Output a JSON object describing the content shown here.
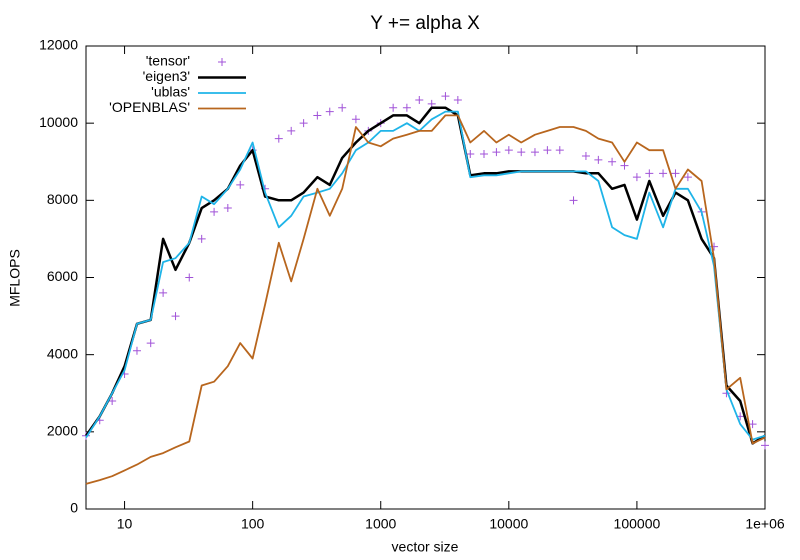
{
  "chart_data": {
    "type": "line",
    "title": "Y += alpha X",
    "xlabel": "vector size",
    "ylabel": "MFLOPS",
    "xscale": "log",
    "legend": "top-left",
    "x": [
      5,
      6.4,
      8,
      10,
      12.5,
      16,
      20,
      25,
      32,
      40,
      50,
      64,
      80,
      100,
      125,
      160,
      200,
      250,
      320,
      400,
      500,
      640,
      800,
      1000,
      1250,
      1600,
      2000,
      2500,
      3200,
      4000,
      5000,
      6400,
      8000,
      10000,
      12500,
      16000,
      20000,
      25000,
      32000,
      40000,
      50000,
      64000,
      80000,
      100000,
      125000,
      160000,
      200000,
      250000,
      320000,
      400000,
      500000,
      640000,
      800000,
      1000000
    ],
    "series": [
      {
        "name": "'tensor'",
        "color": "#a052d8",
        "style": "points",
        "values": [
          1900,
          2300,
          2800,
          3500,
          4100,
          4300,
          5600,
          5000,
          6000,
          7000,
          7700,
          7800,
          8400,
          9300,
          8300,
          9600,
          9800,
          10000,
          10200,
          10300,
          10400,
          10100,
          9800,
          10000,
          10400,
          10400,
          10600,
          10500,
          10700,
          10600,
          9200,
          9200,
          9250,
          9300,
          9250,
          9250,
          9300,
          9300,
          8000,
          9150,
          9050,
          9000,
          8900,
          8600,
          8700,
          8700,
          8700,
          8600,
          7700,
          6800,
          3000,
          2400,
          2200,
          1650
        ]
      },
      {
        "name": "'eigen3'",
        "color": "#000000",
        "style": "lines",
        "width": 2.5,
        "values": [
          1900,
          2400,
          3000,
          3700,
          4800,
          4900,
          7000,
          6200,
          6900,
          7800,
          8000,
          8300,
          8900,
          9300,
          8100,
          8000,
          8000,
          8200,
          8600,
          8400,
          9100,
          9500,
          9800,
          10000,
          10200,
          10200,
          10000,
          10400,
          10400,
          10200,
          8650,
          8700,
          8700,
          8750,
          8750,
          8750,
          8750,
          8750,
          8750,
          8700,
          8700,
          8300,
          8400,
          7500,
          8500,
          7600,
          8200,
          8000,
          7000,
          6500,
          3200,
          2800,
          1700,
          1900
        ]
      },
      {
        "name": "'ublas'",
        "color": "#1fb4e8",
        "style": "lines",
        "width": 1.8,
        "values": [
          1850,
          2400,
          3000,
          3600,
          4800,
          4900,
          6400,
          6500,
          6900,
          8100,
          7900,
          8300,
          8800,
          9500,
          8200,
          7300,
          7600,
          8100,
          8200,
          8300,
          8700,
          9300,
          9500,
          9800,
          9800,
          10000,
          9800,
          10100,
          10300,
          10300,
          8600,
          8650,
          8650,
          8700,
          8750,
          8750,
          8750,
          8750,
          8750,
          8750,
          8500,
          7300,
          7100,
          7000,
          8200,
          7300,
          8300,
          8300,
          7700,
          6300,
          3100,
          2200,
          1800,
          1900
        ]
      },
      {
        "name": "'OPENBLAS'",
        "color": "#b8661e",
        "style": "lines",
        "width": 1.8,
        "values": [
          650,
          750,
          850,
          1000,
          1150,
          1350,
          1450,
          1600,
          1750,
          3200,
          3300,
          3700,
          4300,
          3900,
          5300,
          6900,
          5900,
          7000,
          8300,
          7600,
          8300,
          9900,
          9500,
          9400,
          9600,
          9700,
          9800,
          9800,
          10200,
          10200,
          9500,
          9800,
          9500,
          9700,
          9500,
          9700,
          9800,
          9900,
          9900,
          9800,
          9600,
          9500,
          9000,
          9500,
          9300,
          9300,
          8300,
          8800,
          8500,
          6500,
          3100,
          3400,
          1700,
          1850
        ]
      }
    ],
    "xlim": [
      5,
      1000000
    ],
    "ylim": [
      0,
      12000
    ],
    "xticks": [
      10,
      100,
      1000,
      10000,
      100000,
      {
        "value": 1000000,
        "label": "1e+06"
      }
    ],
    "yticks": [
      0,
      2000,
      4000,
      6000,
      8000,
      10000,
      12000
    ]
  }
}
